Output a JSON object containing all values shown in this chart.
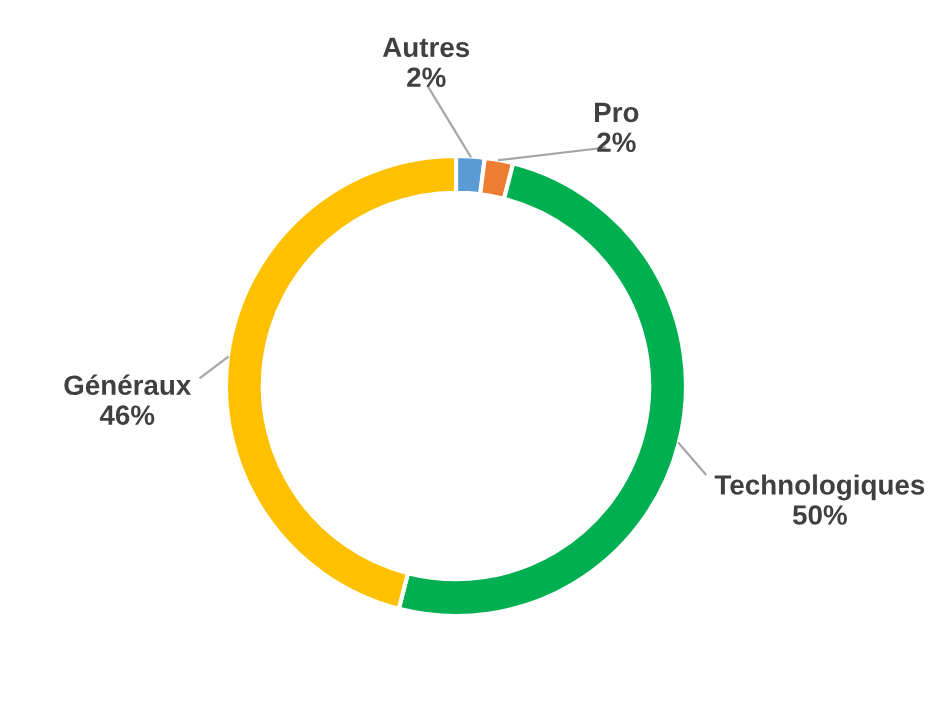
{
  "chart_data": {
    "type": "donut",
    "categories": [
      "Autres",
      "Pro",
      "Technologiques",
      "Généraux"
    ],
    "values": [
      2,
      2,
      50,
      46
    ],
    "colors": [
      "#5b9bd5",
      "#ed7d31",
      "#00b050",
      "#ffc000"
    ],
    "value_labels": [
      "2%",
      "2%",
      "50%",
      "46%"
    ]
  }
}
